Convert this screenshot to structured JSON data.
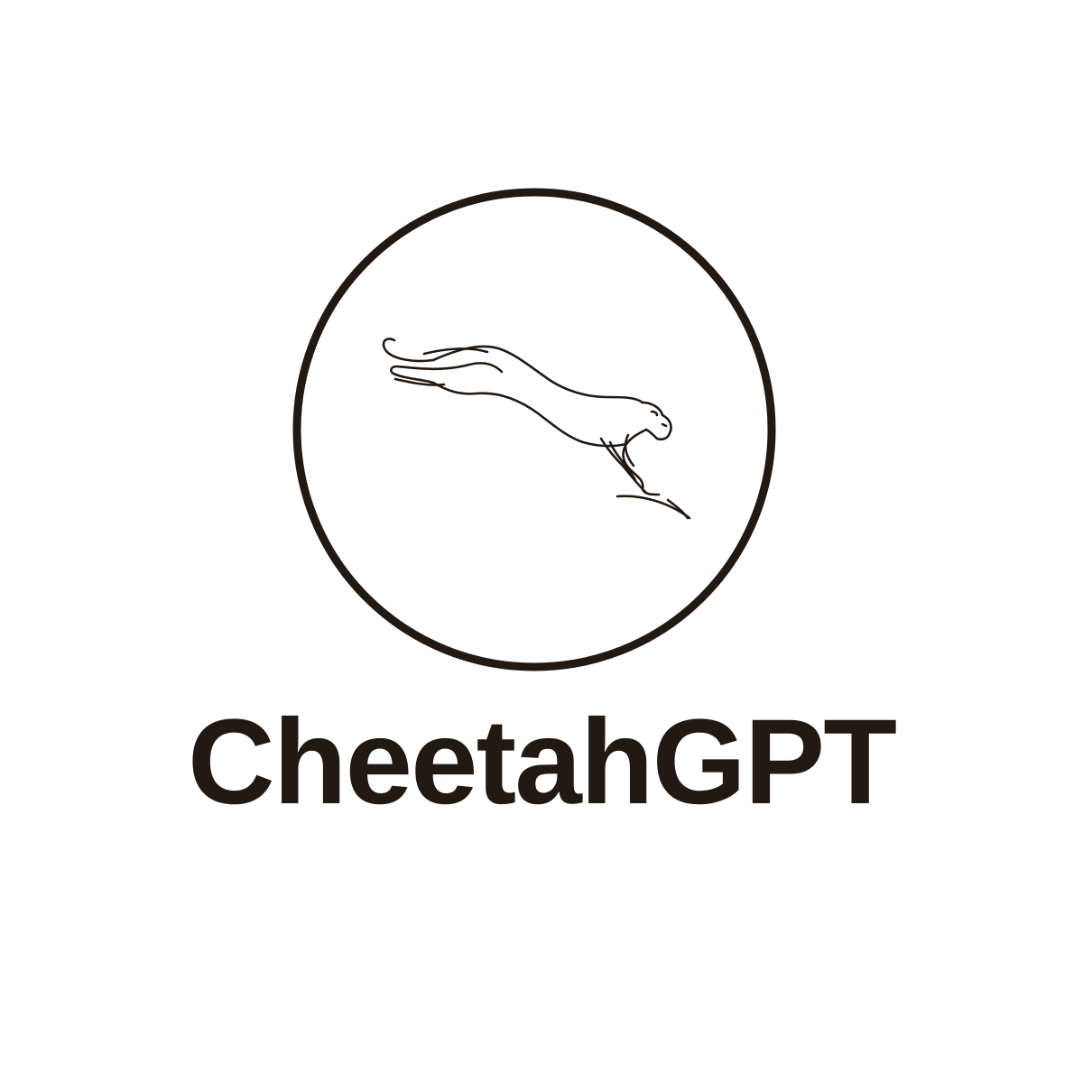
{
  "brand": {
    "name": "CheetahGPT",
    "color": "#221a12"
  },
  "emblem": {
    "icon": "leaping-cheetah-icon",
    "frame": "circle-outline",
    "stroke_color": "#221a12",
    "background": "#ffffff"
  }
}
